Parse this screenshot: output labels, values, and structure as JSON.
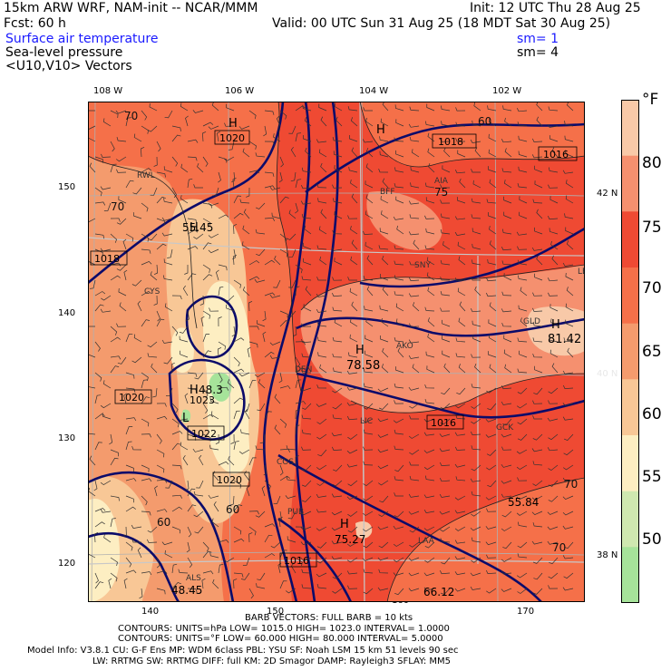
{
  "header": {
    "title_left": "15km ARW WRF, NAM-init -- NCAR/MMM",
    "init": "Init: 12 UTC Thu 28 Aug 25",
    "fcst": "Fcst:   60 h",
    "valid": "Valid: 00 UTC Sun 31 Aug 25 (18 MDT Sat 30 Aug 25)",
    "field1": "Surface air temperature",
    "field1_sm": "sm= 1",
    "field2": "Sea-level pressure",
    "field2_sm": "sm= 4",
    "field3": "<U10,V10> Vectors"
  },
  "axes": {
    "lon_top": [
      "108 W",
      "106 W",
      "104 W",
      "102 W"
    ],
    "lat_right": [
      "42 N",
      "40 N",
      "38 N"
    ],
    "grid_left": [
      "150",
      "140",
      "130",
      "120"
    ],
    "grid_bottom": [
      "140",
      "150",
      "160",
      "170"
    ]
  },
  "colorbar": {
    "unit": "°F",
    "labels": [
      "80",
      "75",
      "70",
      "65",
      "60",
      "55",
      "50"
    ],
    "colors": [
      "#f8c9a8",
      "#f5906f",
      "#ef4a33",
      "#f57049",
      "#f49b6d",
      "#f8c796",
      "#fdeec2",
      "#cfe8b0",
      "#a6e39a"
    ]
  },
  "map_labels": {
    "pressure": [
      "1020",
      "1018",
      "1018",
      "1016",
      "1020",
      "1022",
      "1020",
      "1016",
      "1016",
      "1023"
    ],
    "extrema": [
      "H",
      "H",
      "H",
      "H",
      "H",
      "L",
      "H",
      "H"
    ],
    "values": [
      "55.45",
      "78.58",
      "81.42",
      "48.3",
      "55.84",
      "75.27",
      "48.45",
      "66.12"
    ],
    "stations": [
      "RWL",
      "CYS",
      "BFF",
      "SNY",
      "AKO",
      "DEN",
      "COS",
      "PUB",
      "LAA",
      "GCK",
      "ALS",
      "LBF",
      "LIC",
      "GLD",
      "AIA"
    ],
    "contour_numbers": [
      "70",
      "70",
      "60",
      "60",
      "60",
      "70",
      "70",
      "75"
    ]
  },
  "footer": {
    "barb": "BARB VECTORS:  FULL BARB = 10 kts",
    "contours_hpa": "CONTOURS:  UNITS=hPa  LOW=  1015.0        HIGH=  1023.0        INTERVAL=   1.0000",
    "contours_f": "CONTOURS:  UNITS=°F  LOW=  60.000        HIGH=  80.000        INTERVAL=   5.0000",
    "model_info": "Model Info: V3.8.1    CU: G-F Ens  MP: WDM 6class  PBL: YSU       SF: Noah LSM     15 km   51 levels   90 sec",
    "model_info2": "LW: RRTMG    SW: RRTMG   DIFF: full    KM: 2D Smagor DAMP: Rayleigh3  SFLAY: MM5"
  }
}
